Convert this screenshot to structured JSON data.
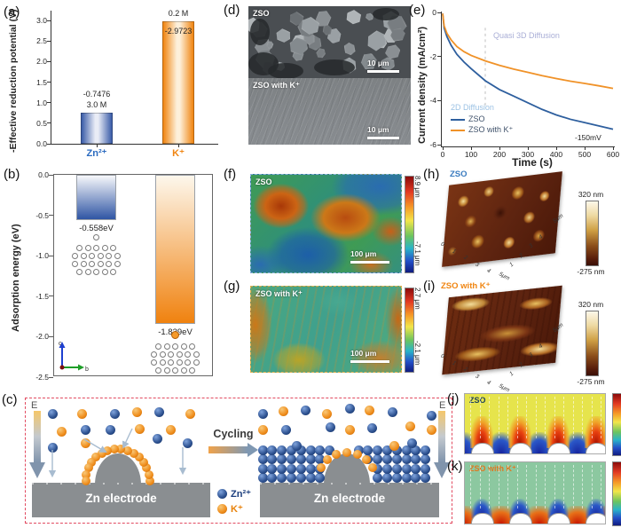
{
  "panels": {
    "a": {
      "tag": "(a)",
      "ylabel": "-Effective reduction potential (V)"
    },
    "b": {
      "tag": "(b)",
      "ylabel": "Adsorption energy (eV)",
      "axis_up": "c",
      "axis_right": "b"
    },
    "c": {
      "tag": "(c)",
      "field_label": "E",
      "cycling": "Cycling",
      "electrode_left": "Zn electrode",
      "electrode_right": "Zn electrode",
      "legend": [
        {
          "label": "Zn²⁺",
          "color": "#1d3f7e"
        },
        {
          "label": "K⁺",
          "color": "#e8820a"
        }
      ]
    },
    "d": {
      "tag": "(d)",
      "top_label": "ZSO",
      "bottom_label": "ZSO with K⁺",
      "scalebar_top": "10 μm",
      "scalebar_bottom": "10 μm"
    },
    "e": {
      "tag": "(e)",
      "xlabel": "Time (s)",
      "ylabel": "Current density (mA/cm²)",
      "annotation_quasi": "Quasi 3D Diffusion",
      "annotation_2d": "2D Diffusion",
      "annotation_voltage": "-150mV"
    },
    "f": {
      "tag": "(f)",
      "title": "ZSO",
      "scalebar": "100 μm",
      "cbar_top": "8.9 μm",
      "cbar_bottom": "-7.1 μm"
    },
    "g": {
      "tag": "(g)",
      "title": "ZSO with K⁺",
      "scalebar": "100 μm",
      "cbar_top": "2.7 μm",
      "cbar_bottom": "-2.1 μm"
    },
    "h": {
      "tag": "(h)",
      "title": "ZSO",
      "cbar_top": "320 nm",
      "cbar_bottom": "-275 nm",
      "axis_front": [
        "0",
        "1",
        "2",
        "3",
        "4"
      ],
      "axis_right": [
        "1",
        "2",
        "3",
        "4"
      ],
      "axis_unit": "5μm"
    },
    "i": {
      "tag": "(i)",
      "title": "ZSO with K⁺",
      "cbar_top": "320 nm",
      "cbar_bottom": "-275 nm",
      "axis_front": [
        "0",
        "1",
        "2",
        "3",
        "4"
      ],
      "axis_right": [
        "1",
        "2",
        "3",
        "4"
      ],
      "axis_unit": "5μm"
    },
    "j": {
      "tag": "(j)",
      "title": "ZSO"
    },
    "k": {
      "tag": "(k)",
      "title": "ZSO with K⁺"
    }
  },
  "chart_data": [
    {
      "panel": "a",
      "type": "bar",
      "ylabel": "-Effective reduction potential (V)",
      "ylim": [
        0,
        3.0
      ],
      "yticks": [
        0.0,
        0.5,
        1.0,
        1.5,
        2.0,
        2.5,
        3.0
      ],
      "bars": [
        {
          "category": "Zn²⁺",
          "value": 0.7476,
          "labels_above": [
            "-0.7476",
            "3.0 M"
          ],
          "labels_inside": [],
          "color": "#3a5ca8",
          "center_color": "#e9ecf6",
          "cat_color": "#2b6bc0"
        },
        {
          "category": "K⁺",
          "value": 2.9723,
          "labels_above": [
            "0.2 M"
          ],
          "labels_inside": [
            "-2.9723"
          ],
          "color": "#f08511",
          "center_color": "#fdf0da",
          "cat_color": "#f08511"
        }
      ]
    },
    {
      "panel": "b",
      "type": "bar",
      "ylabel": "Adsorption energy (eV)",
      "ylim": [
        0,
        -2.5
      ],
      "yticks": [
        0.0,
        -0.5,
        -1.0,
        -1.5,
        -2.0,
        -2.5
      ],
      "bars": [
        {
          "value": -0.558,
          "label": "-0.558eV",
          "color": "#2f55a4",
          "top_color": "#f7f8fb"
        },
        {
          "value": -1.839,
          "label": "-1.839eV",
          "color": "#f0820f",
          "top_color": "#fdf7ec"
        }
      ]
    },
    {
      "panel": "e",
      "type": "line",
      "xlabel": "Time (s)",
      "ylabel": "Current density (mA/cm²)",
      "xlim": [
        0,
        600
      ],
      "ylim": [
        -6,
        0
      ],
      "xticks": [
        0,
        100,
        200,
        300,
        400,
        500,
        600
      ],
      "yticks": [
        0,
        -2,
        -4,
        -6
      ],
      "guide_x": 150,
      "series": [
        {
          "name": "ZSO",
          "color": "#2e5f9e",
          "x": [
            0,
            5,
            15,
            30,
            50,
            75,
            100,
            150,
            200,
            250,
            300,
            350,
            400,
            450,
            500,
            550,
            600
          ],
          "y": [
            -0.05,
            -0.7,
            -1.1,
            -1.5,
            -1.9,
            -2.25,
            -2.55,
            -3.1,
            -3.5,
            -3.8,
            -4.1,
            -4.4,
            -4.65,
            -4.85,
            -5.0,
            -5.15,
            -5.3
          ]
        },
        {
          "name": "ZSO with K⁺",
          "color": "#f09228",
          "x": [
            0,
            5,
            15,
            30,
            50,
            75,
            100,
            150,
            200,
            250,
            300,
            350,
            400,
            450,
            500,
            550,
            600
          ],
          "y": [
            -0.05,
            -0.6,
            -0.95,
            -1.25,
            -1.55,
            -1.78,
            -1.95,
            -2.2,
            -2.4,
            -2.57,
            -2.72,
            -2.87,
            -3.0,
            -3.12,
            -3.22,
            -3.33,
            -3.45
          ]
        }
      ]
    }
  ]
}
